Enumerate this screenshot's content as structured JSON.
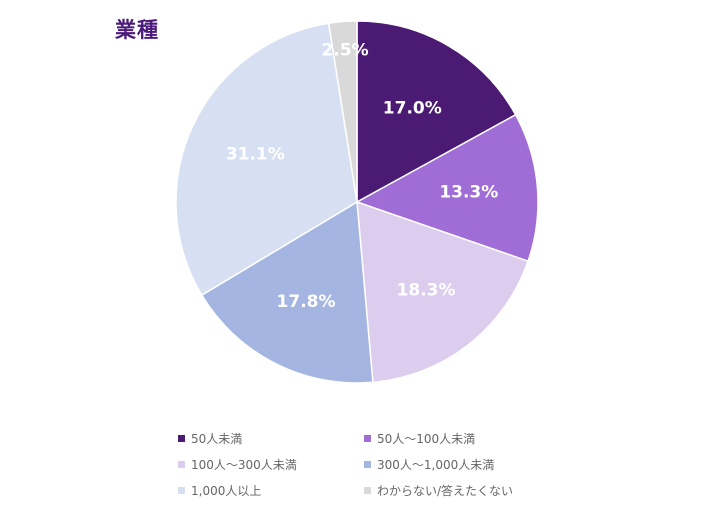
{
  "title": "業種",
  "chart_data": {
    "type": "pie",
    "title": "業種",
    "slices": [
      {
        "label": "50人未満",
        "value": 17.0,
        "display": "17.0%",
        "color": "#4B1A72"
      },
      {
        "label": "50人～100人未満",
        "value": 13.3,
        "display": "13.3%",
        "color": "#A06CD5"
      },
      {
        "label": "100人～300人未満",
        "value": 18.3,
        "display": "18.3%",
        "color": "#DCCCEE"
      },
      {
        "label": "300人～1,000人未満",
        "value": 17.8,
        "display": "17.8%",
        "color": "#A3B5E0"
      },
      {
        "label": "1,000人以上",
        "value": 31.1,
        "display": "31.1%",
        "color": "#D7E0F2"
      },
      {
        "label": "わからない/答えたくない",
        "value": 2.5,
        "display": "2.5%",
        "color": "#D9D9D9"
      }
    ],
    "start": "12 o'clock",
    "direction": "clockwise",
    "legend_position": "bottom"
  }
}
